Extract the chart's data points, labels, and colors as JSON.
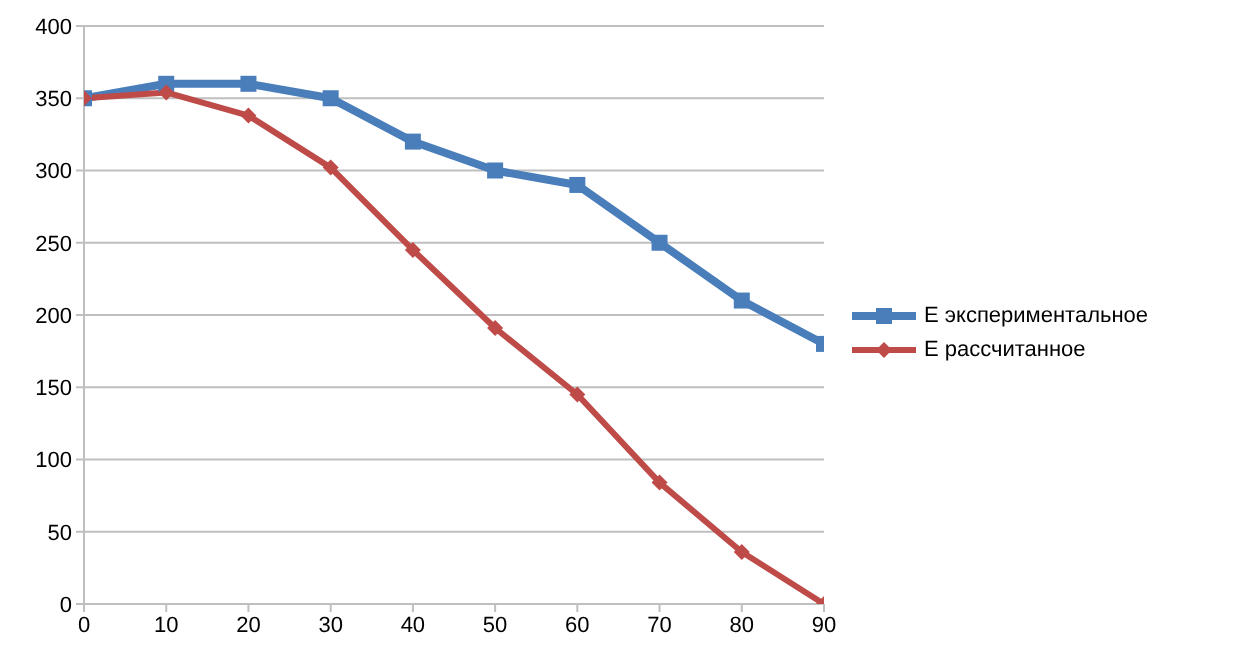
{
  "chart_data": {
    "type": "line",
    "x": [
      0,
      10,
      20,
      30,
      40,
      50,
      60,
      70,
      80,
      90
    ],
    "series": [
      {
        "name": "E экспериментальное",
        "color": "#4a7ebb",
        "marker": "square",
        "values": [
          350,
          360,
          360,
          350,
          320,
          300,
          290,
          250,
          210,
          180
        ]
      },
      {
        "name": "E рассчитанное",
        "color": "#be4b48",
        "marker": "diamond",
        "values": [
          350,
          354,
          338,
          302,
          245,
          191,
          145,
          84,
          36,
          0
        ]
      }
    ],
    "xlim": [
      0,
      90
    ],
    "xticks": [
      0,
      10,
      20,
      30,
      40,
      50,
      60,
      70,
      80,
      90
    ],
    "ylim": [
      0,
      400
    ],
    "yticks": [
      0,
      50,
      100,
      150,
      200,
      250,
      300,
      350,
      400
    ],
    "grid": "y",
    "legend": "right",
    "line_style": "solid"
  }
}
